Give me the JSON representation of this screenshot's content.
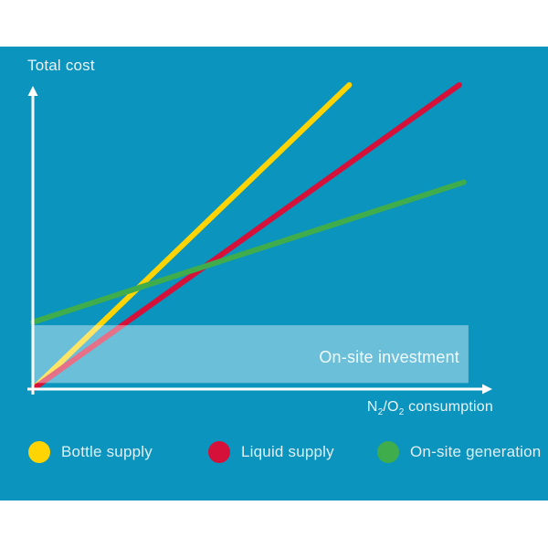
{
  "page": {
    "background": "#ffffff"
  },
  "panel": {
    "background": "#0a94be"
  },
  "chart_data": {
    "type": "line",
    "title": "",
    "ylabel": "Total cost",
    "xlabel": "N2/O2 consumption",
    "xlabel_parts": {
      "n": "N",
      "n_sub": "2",
      "o": "/O",
      "o_sub": "2",
      "rest": " consumption"
    },
    "axes_numeric": false,
    "x_range": [
      0,
      1
    ],
    "y_range": [
      0,
      1
    ],
    "grid": false,
    "legend_position": "bottom",
    "series": [
      {
        "name": "Bottle supply",
        "color": "#ffd400",
        "points": [
          [
            0,
            0
          ],
          [
            0.69,
            1.0
          ]
        ]
      },
      {
        "name": "Liquid supply",
        "color": "#d5113a",
        "points": [
          [
            0,
            0
          ],
          [
            0.93,
            1.0
          ]
        ]
      },
      {
        "name": "On-site generation",
        "color": "#3fad4c",
        "points": [
          [
            0,
            0.22
          ],
          [
            0.94,
            0.68
          ]
        ]
      }
    ],
    "annotation": {
      "label": "On-site investment",
      "shape": "rect",
      "x": [
        0,
        0.95
      ],
      "y": [
        0.02,
        0.21
      ],
      "fill": "rgba(255,255,255,0.40)"
    }
  }
}
